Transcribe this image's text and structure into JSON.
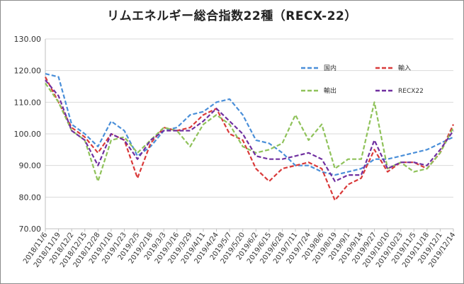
{
  "chart_data": {
    "type": "line",
    "title": "リムエネルギー総合指数22種（RECX-22）",
    "xlabel": "",
    "ylabel": "",
    "ylim": [
      70,
      130
    ],
    "yticks": [
      "70.00",
      "80.00",
      "90.00",
      "100.00",
      "110.00",
      "120.00",
      "130.00"
    ],
    "x_categories": [
      "2018/11/6",
      "2018/11/19",
      "2018/12/2",
      "2018/12/15",
      "2018/12/28",
      "2019/1/10",
      "2019/1/23",
      "2019/2/5",
      "2019/2/18",
      "2019/3/3",
      "2019/3/16",
      "2019/3/29",
      "2019/4/11",
      "2019/4/24",
      "2019/5/7",
      "2019/5/20",
      "2019/6/2",
      "2019/6/15",
      "2019/6/28",
      "2019/7/11",
      "2019/7/24",
      "2019/8/6",
      "2019/8/19",
      "2019/9/1",
      "2019/9/14",
      "2019/9/27",
      "2019/10/10",
      "2019/10/23",
      "2019/11/5",
      "2019/11/18",
      "2019/12/1",
      "2019/12/14"
    ],
    "grid": true,
    "legend_position": "top-right",
    "series": [
      {
        "name": "国内",
        "color": "#4a8fd9",
        "values": [
          119,
          118,
          103,
          100,
          96,
          104,
          101,
          93,
          96,
          101,
          102,
          106,
          107,
          110,
          111,
          106,
          98,
          97,
          94,
          90,
          90,
          88,
          87,
          88,
          89,
          92,
          92,
          93,
          94,
          95,
          97,
          99
        ]
      },
      {
        "name": "輸入",
        "color": "#d93a3a",
        "values": [
          118,
          110,
          102,
          99,
          94,
          100,
          98,
          86,
          97,
          102,
          101,
          102,
          106,
          108,
          100,
          98,
          89,
          85,
          89,
          90,
          91,
          89,
          79,
          84,
          86,
          95,
          88,
          91,
          91,
          89,
          94,
          103
        ]
      },
      {
        "name": "輸出",
        "color": "#8fc25a",
        "values": [
          116,
          110,
          101,
          98,
          85,
          98,
          99,
          94,
          98,
          102,
          101,
          96,
          103,
          106,
          103,
          96,
          94,
          95,
          97,
          106,
          98,
          103,
          89,
          92,
          92,
          110,
          89,
          91,
          88,
          89,
          94,
          102
        ]
      },
      {
        "name": "RECX22",
        "color": "#7030a0",
        "values": [
          117,
          112,
          101,
          98,
          90,
          100,
          98,
          92,
          98,
          101,
          101,
          101,
          104,
          108,
          104,
          100,
          93,
          92,
          92,
          93,
          94,
          92,
          85,
          87,
          87,
          98,
          89,
          91,
          91,
          90,
          95,
          101
        ]
      }
    ]
  }
}
